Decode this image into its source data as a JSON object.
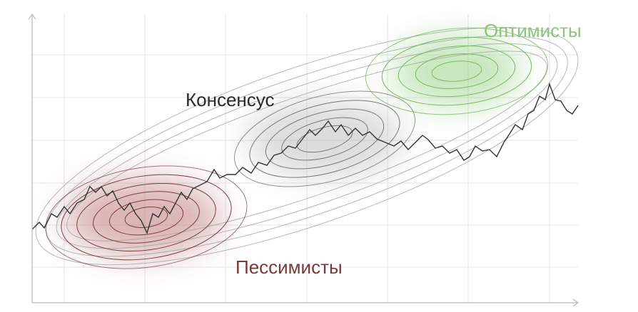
{
  "labels": {
    "consensus": "Консенсус",
    "optimists": "Оптимисты",
    "pessimists": "Пессимисты"
  }
}
